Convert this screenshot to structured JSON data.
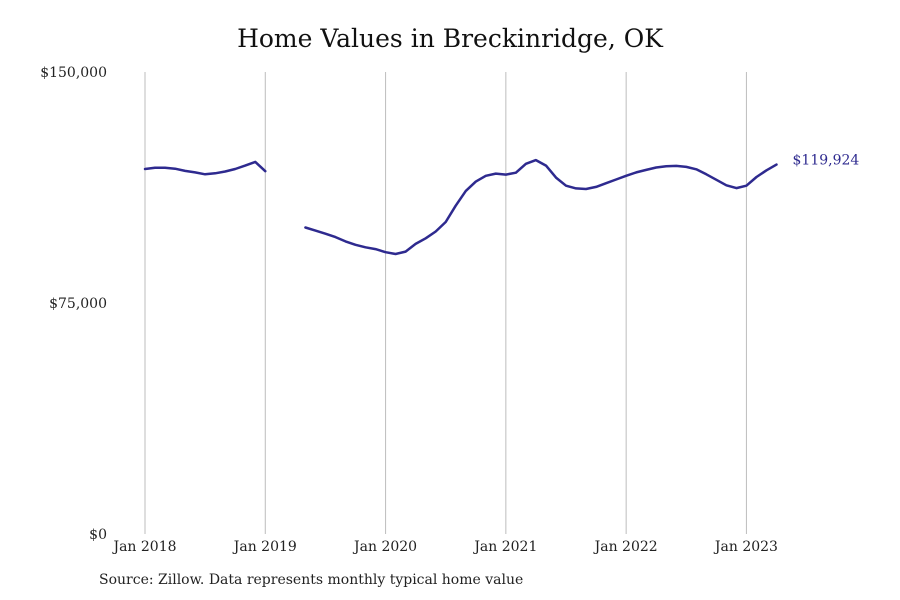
{
  "title": "Home Values in Breckinridge, OK",
  "source": "Source: Zillow. Data represents monthly typical home value",
  "colors": {
    "line": "#2E2A8F",
    "grid": "#bdbdbd",
    "text": "#222222"
  },
  "chart_data": {
    "type": "line",
    "title": "Home Values in Breckinridge, OK",
    "xlabel": "",
    "ylabel": "",
    "ylim": [
      0,
      150000
    ],
    "y_ticks": [
      {
        "value": 0,
        "label": "$0"
      },
      {
        "value": 75000,
        "label": "$75,000"
      },
      {
        "value": 150000,
        "label": "$150,000"
      }
    ],
    "x_ticks": [
      {
        "value": 2018.0,
        "label": "Jan 2018"
      },
      {
        "value": 2019.0,
        "label": "Jan 2019"
      },
      {
        "value": 2020.0,
        "label": "Jan 2020"
      },
      {
        "value": 2021.0,
        "label": "Jan 2021"
      },
      {
        "value": 2022.0,
        "label": "Jan 2022"
      },
      {
        "value": 2023.0,
        "label": "Jan 2023"
      }
    ],
    "xlim": [
      2018.0,
      2023.25
    ],
    "grid": "vertical",
    "end_label": "$119,924",
    "series": [
      {
        "segments": [
          [
            [
              "2018-01",
              118500
            ],
            [
              "2018-02",
              118900
            ],
            [
              "2018-03",
              118900
            ],
            [
              "2018-04",
              118600
            ],
            [
              "2018-05",
              117900
            ],
            [
              "2018-06",
              117400
            ],
            [
              "2018-07",
              116800
            ],
            [
              "2018-08",
              117100
            ],
            [
              "2018-09",
              117700
            ],
            [
              "2018-10",
              118500
            ],
            [
              "2018-11",
              119600
            ],
            [
              "2018-12",
              120800
            ],
            [
              "2019-01",
              117800
            ]
          ],
          [
            [
              "2019-05",
              99500
            ],
            [
              "2019-06",
              98500
            ],
            [
              "2019-07",
              97500
            ],
            [
              "2019-08",
              96400
            ],
            [
              "2019-09",
              95000
            ],
            [
              "2019-10",
              93900
            ],
            [
              "2019-11",
              93100
            ],
            [
              "2019-12",
              92500
            ],
            [
              "2020-01",
              91500
            ],
            [
              "2020-02",
              90900
            ],
            [
              "2020-03",
              91700
            ],
            [
              "2020-04",
              94200
            ],
            [
              "2020-05",
              96000
            ],
            [
              "2020-06",
              98200
            ],
            [
              "2020-07",
              101300
            ],
            [
              "2020-08",
              106600
            ],
            [
              "2020-09",
              111400
            ],
            [
              "2020-10",
              114400
            ],
            [
              "2020-11",
              116300
            ],
            [
              "2020-12",
              117000
            ],
            [
              "2021-01",
              116700
            ],
            [
              "2021-02",
              117300
            ],
            [
              "2021-03",
              120200
            ],
            [
              "2021-04",
              121400
            ],
            [
              "2021-05",
              119600
            ],
            [
              "2021-06",
              115700
            ],
            [
              "2021-07",
              113100
            ],
            [
              "2021-08",
              112200
            ],
            [
              "2021-09",
              112000
            ],
            [
              "2021-10",
              112700
            ],
            [
              "2021-11",
              113900
            ],
            [
              "2021-12",
              115100
            ],
            [
              "2022-01",
              116300
            ],
            [
              "2022-02",
              117400
            ],
            [
              "2022-03",
              118200
            ],
            [
              "2022-04",
              119000
            ],
            [
              "2022-05",
              119400
            ],
            [
              "2022-06",
              119500
            ],
            [
              "2022-07",
              119200
            ],
            [
              "2022-08",
              118400
            ],
            [
              "2022-09",
              116800
            ],
            [
              "2022-10",
              115000
            ],
            [
              "2022-11",
              113200
            ],
            [
              "2022-12",
              112300
            ],
            [
              "2023-01",
              113100
            ],
            [
              "2023-02",
              115900
            ],
            [
              "2023-03",
              118100
            ],
            [
              "2023-04",
              119924
            ]
          ]
        ]
      }
    ]
  }
}
